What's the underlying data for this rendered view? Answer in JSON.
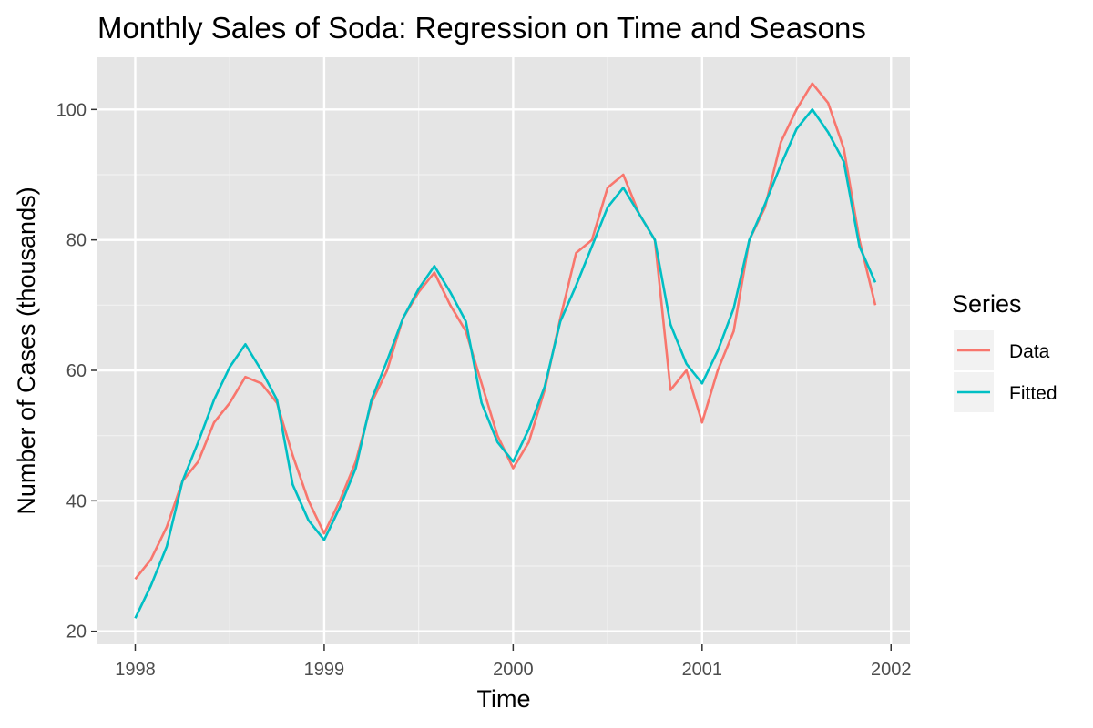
{
  "chart_data": {
    "type": "line",
    "title": "Monthly Sales of Soda: Regression on Time and Seasons",
    "xlabel": "Time",
    "ylabel": "Number of Cases (thousands)",
    "xlim": [
      1997.8,
      2002.1
    ],
    "ylim": [
      18,
      108
    ],
    "x_ticks": [
      1998,
      1999,
      2000,
      2001,
      2002
    ],
    "y_ticks": [
      20,
      40,
      60,
      80,
      100
    ],
    "grid": true,
    "legend_position": "right",
    "legend_title": "Series",
    "x": [
      1998.0,
      1998.083,
      1998.167,
      1998.25,
      1998.333,
      1998.417,
      1998.5,
      1998.583,
      1998.667,
      1998.75,
      1998.833,
      1998.917,
      1999.0,
      1999.083,
      1999.167,
      1999.25,
      1999.333,
      1999.417,
      1999.5,
      1999.583,
      1999.667,
      1999.75,
      1999.833,
      1999.917,
      2000.0,
      2000.083,
      2000.167,
      2000.25,
      2000.333,
      2000.417,
      2000.5,
      2000.583,
      2000.667,
      2000.75,
      2000.833,
      2000.917,
      2001.0,
      2001.083,
      2001.167,
      2001.25,
      2001.333,
      2001.417,
      2001.5,
      2001.583,
      2001.667,
      2001.75,
      2001.833,
      2001.917
    ],
    "series": [
      {
        "name": "Data",
        "color": "#F8766D",
        "values": [
          28,
          31,
          36,
          43,
          46,
          52,
          55,
          59,
          58,
          55,
          47,
          40,
          35,
          40,
          46,
          55,
          60,
          68,
          72,
          75,
          70,
          66,
          58,
          50,
          45,
          49,
          57,
          68,
          78,
          80,
          88,
          90,
          84,
          80,
          57,
          60,
          52,
          60,
          66,
          80,
          85,
          95,
          100,
          104,
          101,
          94,
          80,
          70
        ]
      },
      {
        "name": "Fitted",
        "color": "#00BFC4",
        "values": [
          22,
          27,
          33,
          43,
          49,
          55.5,
          60.5,
          64,
          60,
          55.5,
          42.5,
          37,
          34,
          39,
          45,
          55.5,
          61.5,
          68,
          72.5,
          76,
          72,
          67.5,
          55,
          49,
          46,
          51,
          57.5,
          67.5,
          73,
          79,
          85,
          88,
          84,
          80,
          67,
          61,
          58,
          63,
          69.5,
          80,
          85.5,
          91.5,
          97,
          100,
          96.5,
          92,
          79,
          73.5
        ]
      }
    ]
  }
}
